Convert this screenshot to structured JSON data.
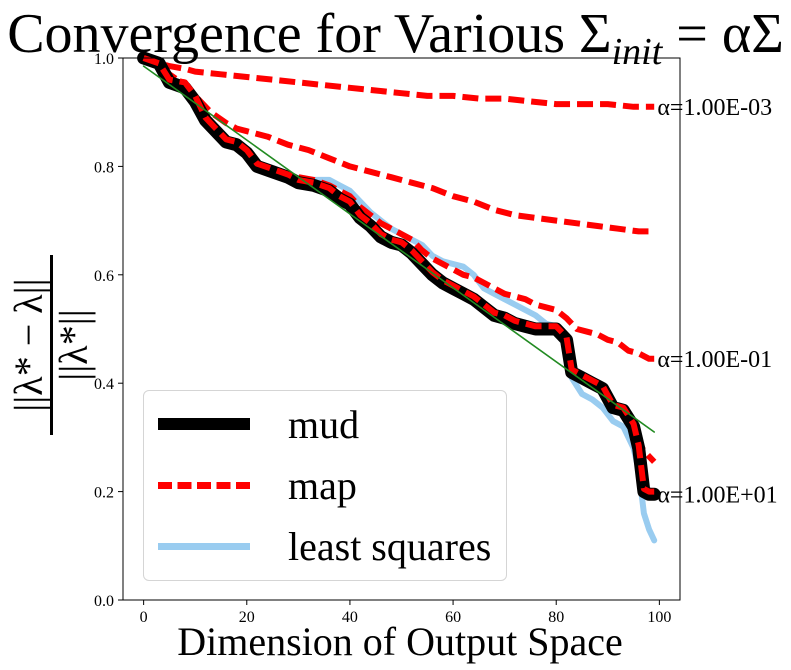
{
  "chart_data": {
    "type": "line",
    "title_prefix": "Convergence for Various Σ",
    "title_sub": "init",
    "title_suffix": " = αΣ",
    "xlabel": "Dimension of Output Space",
    "ylabel_num": "||λ* − λ||",
    "ylabel_den": "||λ*||",
    "xlim": [
      -4,
      104
    ],
    "ylim": [
      0.0,
      1.0
    ],
    "xticks": [
      0,
      20,
      40,
      60,
      80,
      100
    ],
    "yticks": [
      0.0,
      0.2,
      0.4,
      0.6,
      0.8,
      1.0
    ],
    "xtick_labels": [
      "0",
      "20",
      "40",
      "60",
      "80",
      "100"
    ],
    "ytick_labels": [
      "0.0",
      "0.2",
      "0.4",
      "0.6",
      "0.8",
      "1.0"
    ],
    "legend": {
      "placement": "lower-left"
    },
    "series": [
      {
        "name": "mud",
        "color": "#000000",
        "style": "solid-thick",
        "x": [
          0,
          3,
          5,
          8,
          10,
          12,
          14,
          16,
          18,
          20,
          22,
          25,
          28,
          30,
          33,
          36,
          38,
          40,
          42,
          44,
          46,
          48,
          50,
          52,
          54,
          56,
          58,
          60,
          62,
          64,
          66,
          68,
          70,
          72,
          74,
          76,
          78,
          80,
          82,
          83,
          85,
          87,
          89,
          91,
          93,
          95,
          96,
          97,
          98,
          99
        ],
        "values": [
          1.0,
          0.99,
          0.955,
          0.945,
          0.92,
          0.885,
          0.865,
          0.845,
          0.84,
          0.825,
          0.8,
          0.79,
          0.78,
          0.77,
          0.765,
          0.755,
          0.74,
          0.73,
          0.705,
          0.69,
          0.67,
          0.66,
          0.655,
          0.64,
          0.62,
          0.6,
          0.585,
          0.575,
          0.565,
          0.555,
          0.54,
          0.525,
          0.52,
          0.51,
          0.505,
          0.5,
          0.5,
          0.5,
          0.48,
          0.42,
          0.41,
          0.4,
          0.39,
          0.355,
          0.35,
          0.32,
          0.28,
          0.2,
          0.195,
          0.195
        ]
      },
      {
        "name": "map",
        "color": "#ff0000",
        "style": "dashed",
        "x": [
          0,
          3,
          5,
          8,
          10,
          12,
          14,
          16,
          18,
          20,
          22,
          25,
          28,
          30,
          33,
          36,
          38,
          40,
          42,
          44,
          46,
          48,
          50,
          52,
          54,
          56,
          58,
          60,
          62,
          64,
          66,
          68,
          70,
          72,
          74,
          76,
          78,
          80,
          82,
          83,
          85,
          87,
          89,
          91,
          93,
          95,
          96,
          97,
          98,
          99
        ],
        "values": [
          1.0,
          0.99,
          0.96,
          0.955,
          0.93,
          0.89,
          0.87,
          0.85,
          0.845,
          0.83,
          0.805,
          0.795,
          0.785,
          0.775,
          0.77,
          0.76,
          0.745,
          0.735,
          0.71,
          0.695,
          0.675,
          0.665,
          0.66,
          0.645,
          0.625,
          0.605,
          0.59,
          0.58,
          0.57,
          0.56,
          0.545,
          0.53,
          0.525,
          0.515,
          0.51,
          0.505,
          0.505,
          0.505,
          0.485,
          0.425,
          0.415,
          0.405,
          0.395,
          0.36,
          0.355,
          0.325,
          0.285,
          0.205,
          0.2,
          0.2
        ]
      },
      {
        "name": "least squares",
        "color": "#99ccf0",
        "style": "solid-thick",
        "x": [
          0,
          3,
          5,
          8,
          10,
          12,
          14,
          16,
          18,
          20,
          22,
          25,
          28,
          30,
          33,
          36,
          38,
          40,
          42,
          44,
          46,
          48,
          50,
          52,
          54,
          56,
          58,
          60,
          62,
          64,
          66,
          68,
          70,
          72,
          74,
          76,
          78,
          80,
          82,
          83,
          85,
          87,
          89,
          91,
          93,
          95,
          96,
          97,
          98,
          99
        ],
        "values": [
          1.0,
          0.995,
          0.96,
          0.95,
          0.925,
          0.89,
          0.865,
          0.845,
          0.84,
          0.825,
          0.805,
          0.795,
          0.785,
          0.775,
          0.775,
          0.775,
          0.765,
          0.755,
          0.735,
          0.715,
          0.7,
          0.685,
          0.675,
          0.665,
          0.655,
          0.635,
          0.625,
          0.62,
          0.615,
          0.6,
          0.575,
          0.565,
          0.555,
          0.545,
          0.535,
          0.525,
          0.51,
          0.505,
          0.48,
          0.41,
          0.38,
          0.37,
          0.355,
          0.33,
          0.32,
          0.28,
          0.24,
          0.16,
          0.13,
          0.11
        ]
      },
      {
        "color": "#ff0000",
        "style": "dashed",
        "x": [
          0,
          3,
          5,
          8,
          10,
          15,
          20,
          25,
          30,
          35,
          40,
          45,
          50,
          55,
          60,
          65,
          70,
          75,
          80,
          85,
          90,
          95,
          99
        ],
        "values": [
          1.0,
          0.99,
          0.985,
          0.98,
          0.975,
          0.97,
          0.965,
          0.96,
          0.955,
          0.95,
          0.945,
          0.94,
          0.935,
          0.93,
          0.93,
          0.925,
          0.925,
          0.92,
          0.915,
          0.915,
          0.915,
          0.91,
          0.91
        ]
      },
      {
        "color": "#ff0000",
        "style": "dashed",
        "x": [
          0,
          3,
          5,
          8,
          10,
          13,
          16,
          18,
          20,
          24,
          28,
          32,
          36,
          40,
          44,
          48,
          52,
          56,
          60,
          64,
          68,
          72,
          76,
          80,
          84,
          88,
          92,
          96,
          99
        ],
        "values": [
          1.0,
          0.99,
          0.97,
          0.95,
          0.93,
          0.9,
          0.88,
          0.87,
          0.865,
          0.855,
          0.84,
          0.83,
          0.815,
          0.8,
          0.79,
          0.78,
          0.77,
          0.76,
          0.745,
          0.735,
          0.72,
          0.71,
          0.705,
          0.7,
          0.695,
          0.69,
          0.685,
          0.68,
          0.68
        ]
      },
      {
        "color": "#ff0000",
        "style": "dashed",
        "x": [
          0,
          3,
          5,
          8,
          10,
          12,
          14,
          16,
          18,
          20,
          22,
          25,
          28,
          30,
          33,
          36,
          38,
          40,
          42,
          44,
          46,
          48,
          50,
          52,
          54,
          56,
          58,
          60,
          62,
          64,
          66,
          68,
          70,
          72,
          74,
          76,
          78,
          80,
          82,
          84,
          86,
          88,
          90,
          92,
          94,
          96,
          98,
          99
        ],
        "values": [
          1.0,
          0.99,
          0.96,
          0.955,
          0.93,
          0.89,
          0.87,
          0.85,
          0.845,
          0.83,
          0.805,
          0.795,
          0.785,
          0.78,
          0.775,
          0.765,
          0.755,
          0.745,
          0.725,
          0.71,
          0.695,
          0.685,
          0.675,
          0.665,
          0.645,
          0.63,
          0.62,
          0.61,
          0.6,
          0.595,
          0.585,
          0.575,
          0.565,
          0.56,
          0.555,
          0.545,
          0.54,
          0.535,
          0.52,
          0.5,
          0.495,
          0.49,
          0.48,
          0.475,
          0.46,
          0.455,
          0.445,
          0.445
        ]
      },
      {
        "color": "#ff0000",
        "style": "dashed",
        "x": [
          83,
          85,
          87,
          89,
          91,
          93,
          95,
          96,
          97,
          98,
          99
        ],
        "values": [
          0.42,
          0.41,
          0.4,
          0.385,
          0.36,
          0.34,
          0.31,
          0.29,
          0.275,
          0.265,
          0.255
        ]
      },
      {
        "name": "",
        "color": "#228b22",
        "style": "solid-thin",
        "x": [
          0,
          99
        ],
        "values": [
          0.985,
          0.31
        ]
      }
    ],
    "annotations": [
      {
        "text": "α=1.00E-03",
        "x": 100,
        "y": 0.91
      },
      {
        "text": "α=1.00E-01",
        "x": 100,
        "y": 0.445
      },
      {
        "text": "α=1.00E+01",
        "x": 100,
        "y": 0.195
      }
    ],
    "legend_entries": [
      {
        "label": "mud",
        "color": "#000000",
        "style": "solid-thick"
      },
      {
        "label": "map",
        "color": "#ff0000",
        "style": "dashed"
      },
      {
        "label": "least squares",
        "color": "#99ccf0",
        "style": "solid-thick"
      }
    ]
  }
}
